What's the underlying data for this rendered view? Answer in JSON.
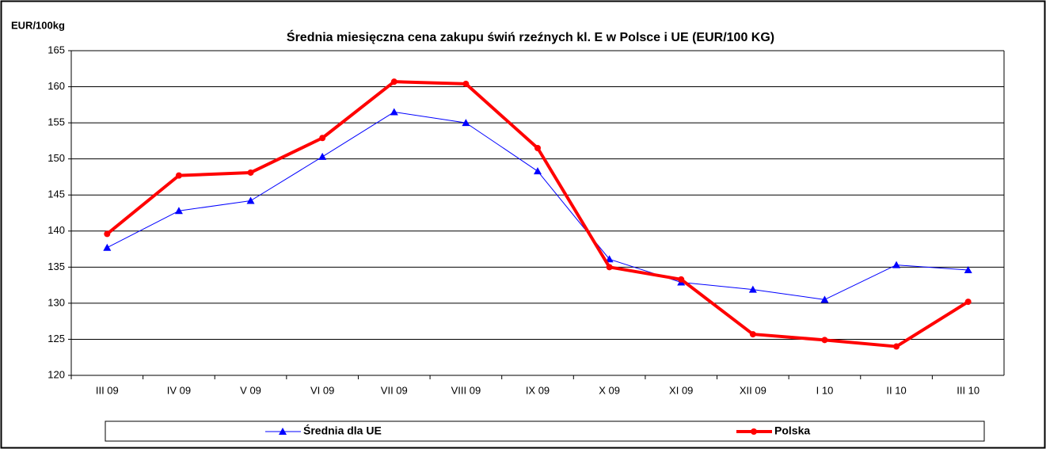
{
  "chart_data": {
    "type": "line",
    "title": "Średnia miesięczna cena zakupu świń rzeźnych kl. E w  Polsce i UE (EUR/100 KG)",
    "y_label": "EUR/100kg",
    "categories": [
      "III 09",
      "IV 09",
      "V 09",
      "VI 09",
      "VII 09",
      "VIII 09",
      "IX 09",
      "X 09",
      "XI 09",
      "XII 09",
      "I 10",
      "II 10",
      "III 10"
    ],
    "series": [
      {
        "name": "Średnia dla  UE",
        "color": "#0000ff",
        "marker": "triangle",
        "width": 1,
        "values": [
          137.7,
          142.8,
          144.2,
          150.3,
          156.5,
          155.0,
          148.3,
          136.1,
          132.9,
          131.9,
          130.5,
          135.3,
          134.6
        ]
      },
      {
        "name": "Polska",
        "color": "#ff0000",
        "marker": "circle",
        "width": 4,
        "values": [
          139.6,
          147.7,
          148.1,
          152.9,
          160.7,
          160.4,
          151.5,
          135.0,
          133.3,
          125.7,
          124.9,
          124.0,
          130.2
        ]
      }
    ],
    "ylim": [
      120,
      165
    ],
    "yticks": [
      120,
      125,
      130,
      135,
      140,
      145,
      150,
      155,
      160,
      165
    ],
    "grid": true,
    "legend": "bottom"
  }
}
